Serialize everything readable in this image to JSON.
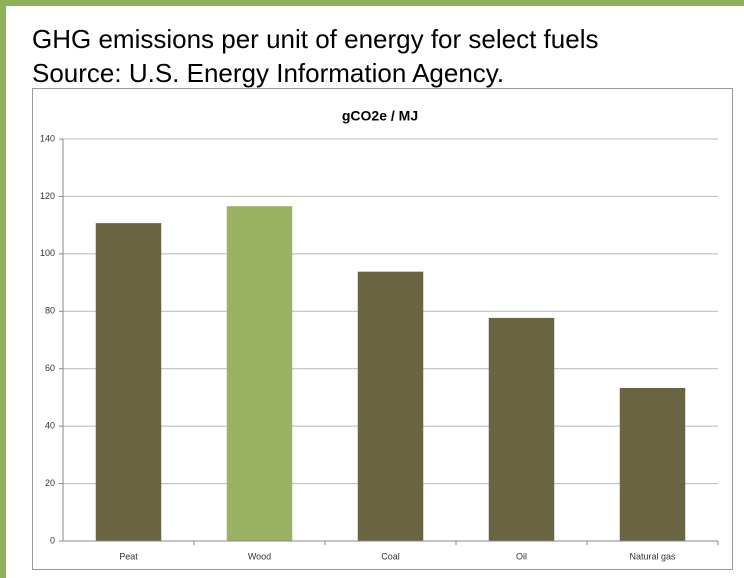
{
  "header": {
    "title": "GHG emissions per unit of energy for select fuels",
    "source": "Source: U.S. Energy Information Agency."
  },
  "chart_data": {
    "type": "bar",
    "title": "gCO2e / MJ",
    "categories": [
      "Peat",
      "Wood",
      "Coal",
      "Oil",
      "Natural gas"
    ],
    "values": [
      110.7,
      116.6,
      93.8,
      77.7,
      53.3
    ],
    "colors": [
      "#6b6443",
      "#9bb164",
      "#6b6443",
      "#6b6443",
      "#6b6443"
    ],
    "ylim": [
      0,
      140
    ],
    "yticks": [
      0,
      20,
      40,
      60,
      80,
      100,
      120,
      140
    ],
    "grid": true
  }
}
